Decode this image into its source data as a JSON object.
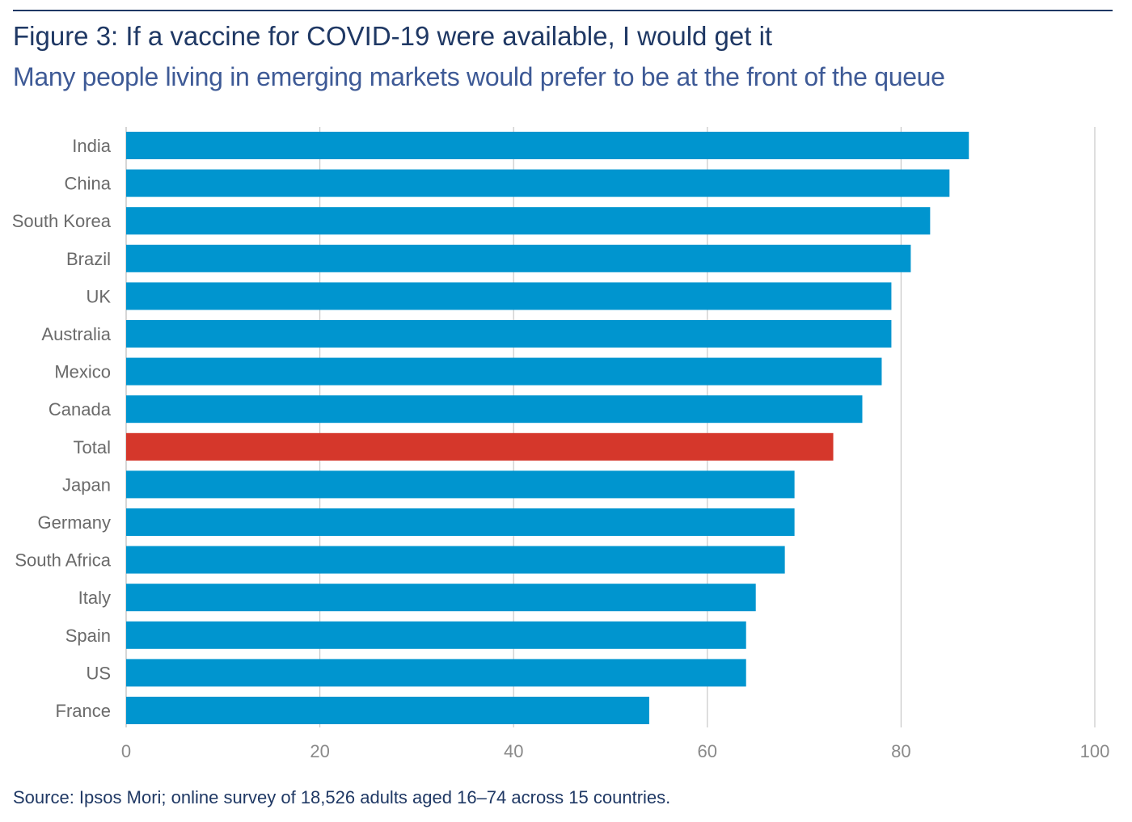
{
  "header": {
    "title": "Figure 3: If a vaccine for COVID-19 were available, I would get it",
    "subtitle": "Many people living in emerging markets would prefer to be at the front of the queue"
  },
  "footer": {
    "source": "Source: Ipsos Mori; online survey of 18,526 adults aged 16–74 across 15 countries."
  },
  "colors": {
    "bar": "#0095cf",
    "highlight": "#d5372b",
    "grid": "#c8c8c8",
    "tick_text": "#8a8a8a",
    "category_text": "#6a6a6a"
  },
  "chart_data": {
    "type": "bar",
    "orientation": "horizontal",
    "categories": [
      "India",
      "China",
      "South Korea",
      "Brazil",
      "UK",
      "Australia",
      "Mexico",
      "Canada",
      "Total",
      "Japan",
      "Germany",
      "South Africa",
      "Italy",
      "Spain",
      "US",
      "France"
    ],
    "values": [
      87,
      85,
      83,
      81,
      79,
      79,
      78,
      76,
      73,
      69,
      69,
      68,
      65,
      64,
      64,
      54
    ],
    "highlight": [
      "Total"
    ],
    "xlim": [
      0,
      100
    ],
    "xticks": [
      0,
      20,
      40,
      60,
      80,
      100
    ],
    "grid": true,
    "xlabel": "",
    "ylabel": ""
  }
}
